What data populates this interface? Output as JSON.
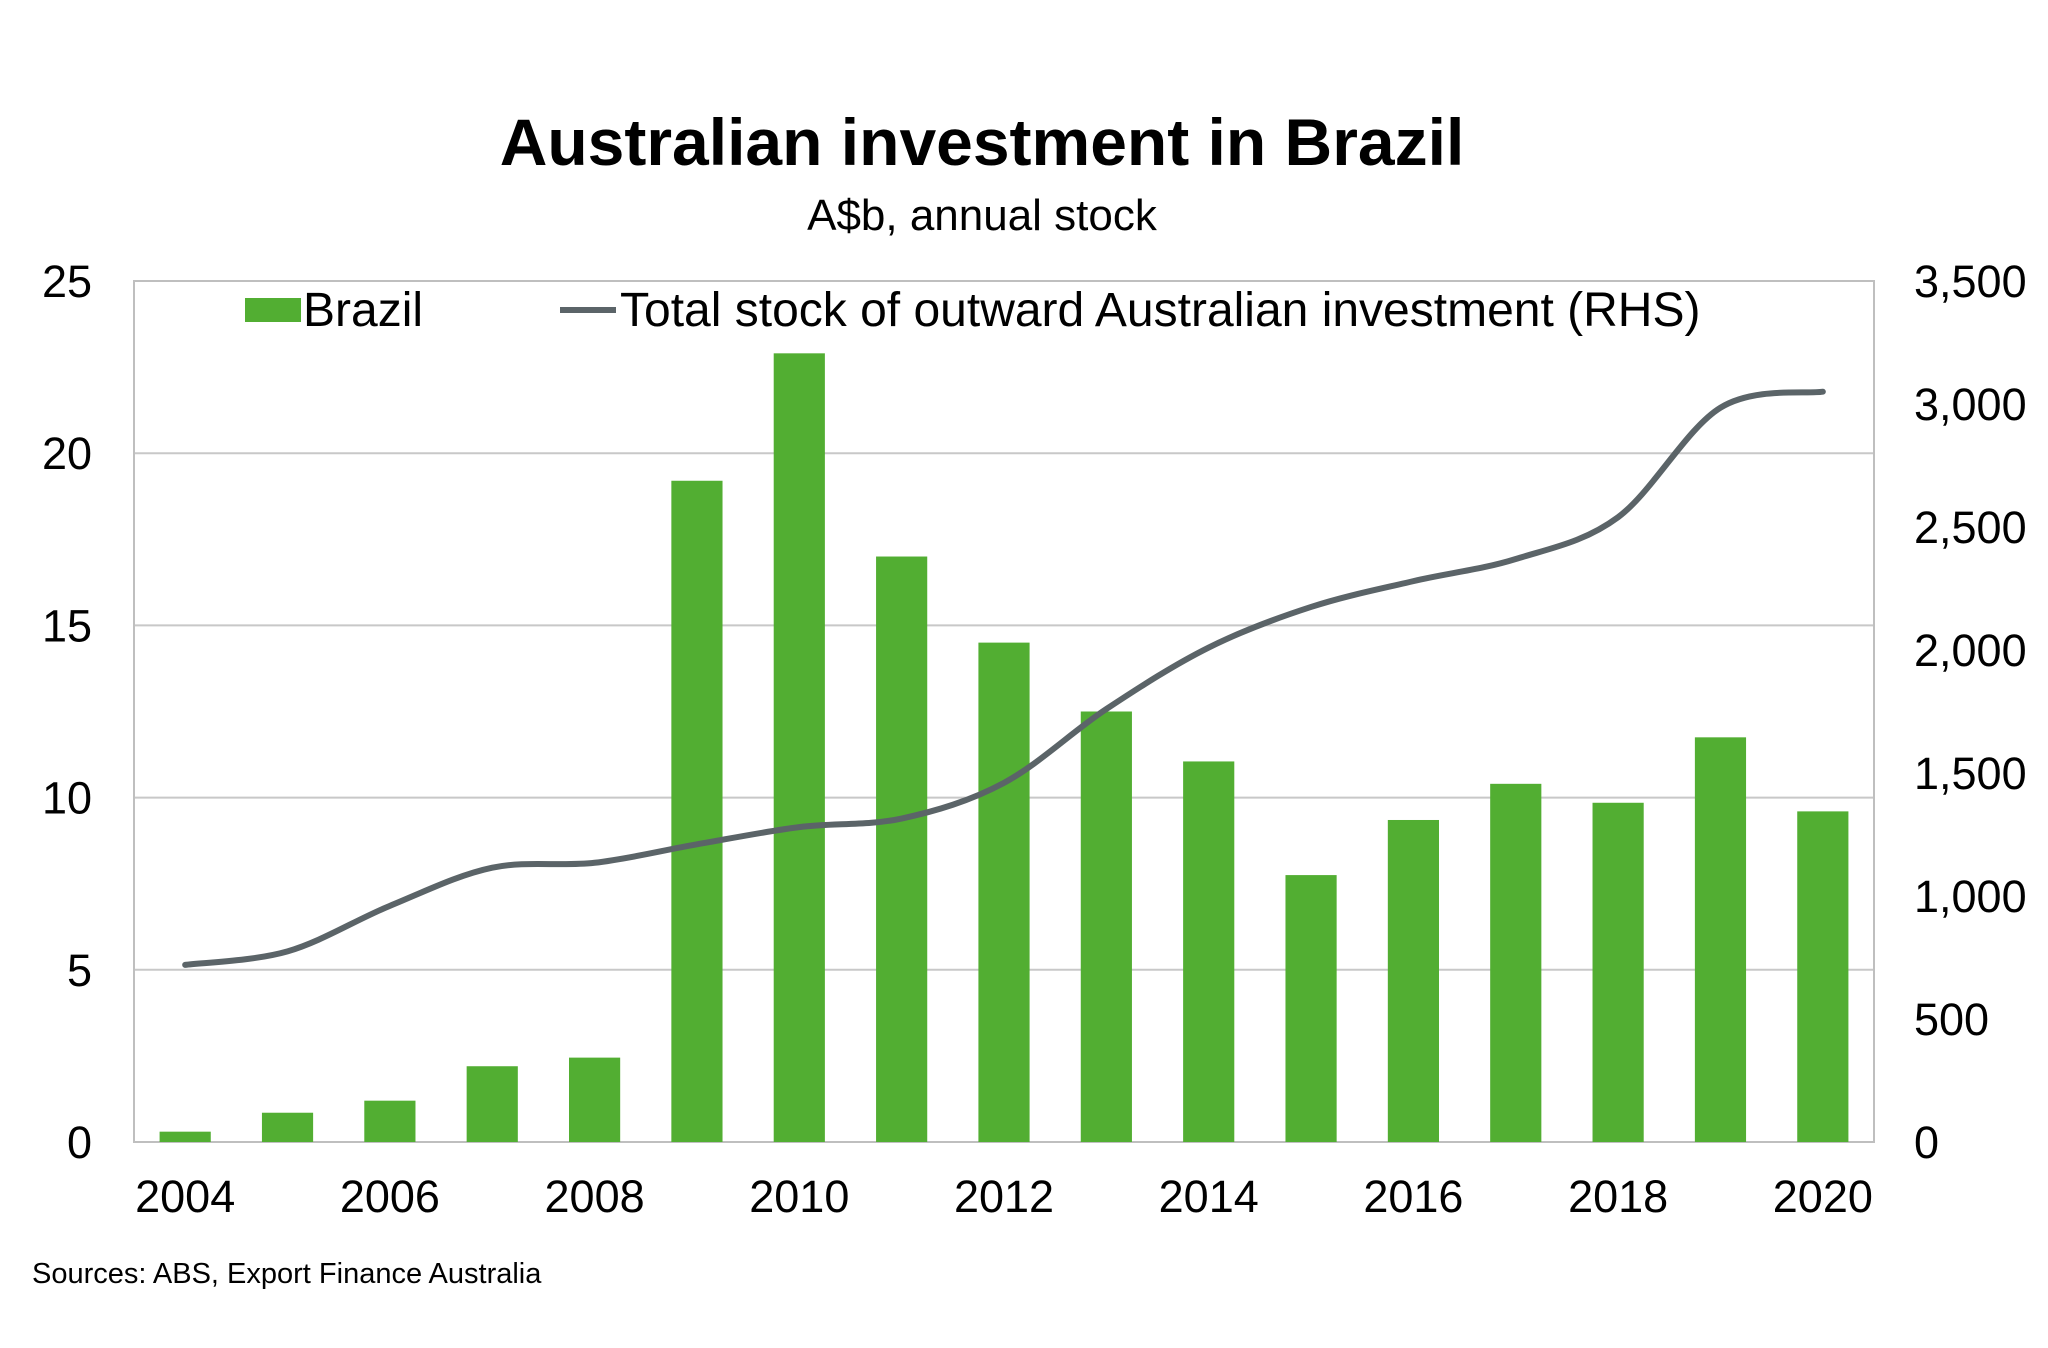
{
  "chart_data": {
    "type": "bar",
    "title": "Australian investment in Brazil",
    "subtitle": "A$b, annual stock",
    "source": "Sources: ABS, Export Finance Australia",
    "categories": [
      "2004",
      "2005",
      "2006",
      "2007",
      "2008",
      "2009",
      "2010",
      "2011",
      "2012",
      "2013",
      "2014",
      "2015",
      "2016",
      "2017",
      "2018",
      "2019",
      "2020"
    ],
    "x_tick_labels": [
      "2004",
      "2006",
      "2008",
      "2010",
      "2012",
      "2014",
      "2016",
      "2018",
      "2020"
    ],
    "y_left": {
      "min": 0,
      "max": 25,
      "ticks": [
        "0",
        "5",
        "10",
        "15",
        "20",
        "25"
      ]
    },
    "y_right": {
      "min": 0,
      "max": 3500,
      "ticks": [
        "0",
        "500",
        "1,000",
        "1,500",
        "2,000",
        "2,500",
        "3,000",
        "3,500"
      ]
    },
    "grid": true,
    "legend_position": "top",
    "series": [
      {
        "name": "Brazil",
        "kind": "bar",
        "axis": "left",
        "color": "#52ae32",
        "values": [
          0.3,
          0.85,
          1.2,
          2.2,
          2.45,
          19.2,
          22.9,
          17.0,
          14.5,
          12.5,
          11.05,
          7.75,
          9.35,
          10.4,
          9.85,
          11.75,
          9.6
        ]
      },
      {
        "name": "Total stock of outward Australian investment (RHS)",
        "kind": "line",
        "axis": "right",
        "color": "#5b6468",
        "values": [
          720,
          775,
          960,
          1115,
          1135,
          1210,
          1280,
          1315,
          1460,
          1760,
          2010,
          2175,
          2280,
          2370,
          2540,
          2985,
          3050
        ]
      }
    ]
  }
}
